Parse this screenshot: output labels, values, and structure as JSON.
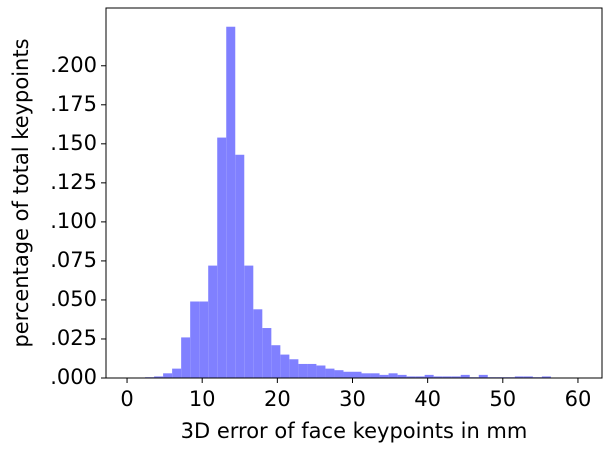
{
  "chart_data": {
    "type": "histogram",
    "xlabel": "3D error of face keypoints in mm",
    "ylabel": "percentage of total keypoints",
    "bins": [
      0,
      1.2,
      2.4,
      3.6,
      4.8,
      6,
      7.2,
      8.4,
      9.6,
      10.8,
      12,
      13.2,
      14.4,
      15.6,
      16.8,
      18,
      19.2,
      20.4,
      21.6,
      22.8,
      24,
      25.2,
      26.4,
      27.6,
      28.8,
      30,
      31.2,
      32.4,
      33.6,
      34.8,
      36,
      37.2,
      38.4,
      39.6,
      40.8,
      42,
      43.2,
      44.4,
      45.6,
      46.8,
      48,
      49.2,
      50.4,
      51.6,
      52.8,
      54,
      55.2,
      56.4,
      57.6,
      58.8,
      60
    ],
    "values": [
      0,
      0,
      0.0005,
      0.001,
      0.003,
      0.006,
      0.026,
      0.049,
      0.049,
      0.072,
      0.154,
      0.225,
      0.143,
      0.072,
      0.044,
      0.032,
      0.021,
      0.015,
      0.012,
      0.009,
      0.009,
      0.008,
      0.006,
      0.005,
      0.004,
      0.004,
      0.003,
      0.003,
      0.002,
      0.003,
      0.002,
      0.001,
      0.001,
      0.002,
      0.001,
      0.001,
      0.001,
      0.002,
      0.0005,
      0.002,
      0.0005,
      0.0005,
      0.0005,
      0.001,
      0.001,
      0.0005,
      0.001,
      0.0003,
      0.0003,
      0.0003
    ],
    "color": "#8080ff",
    "xlim": [
      -2.8,
      63.2
    ],
    "ylim": [
      0,
      0.237
    ],
    "xticks": [
      0,
      10,
      20,
      30,
      40,
      50,
      60
    ],
    "yticks": [
      {
        "value": 0,
        "label": ".000"
      },
      {
        "value": 0.025,
        "label": ".025"
      },
      {
        "value": 0.05,
        "label": ".050"
      },
      {
        "value": 0.075,
        "label": ".075"
      },
      {
        "value": 0.1,
        "label": ".100"
      },
      {
        "value": 0.125,
        "label": ".125"
      },
      {
        "value": 0.15,
        "label": ".150"
      },
      {
        "value": 0.175,
        "label": ".175"
      },
      {
        "value": 0.2,
        "label": ".200"
      }
    ],
    "grid": false
  }
}
